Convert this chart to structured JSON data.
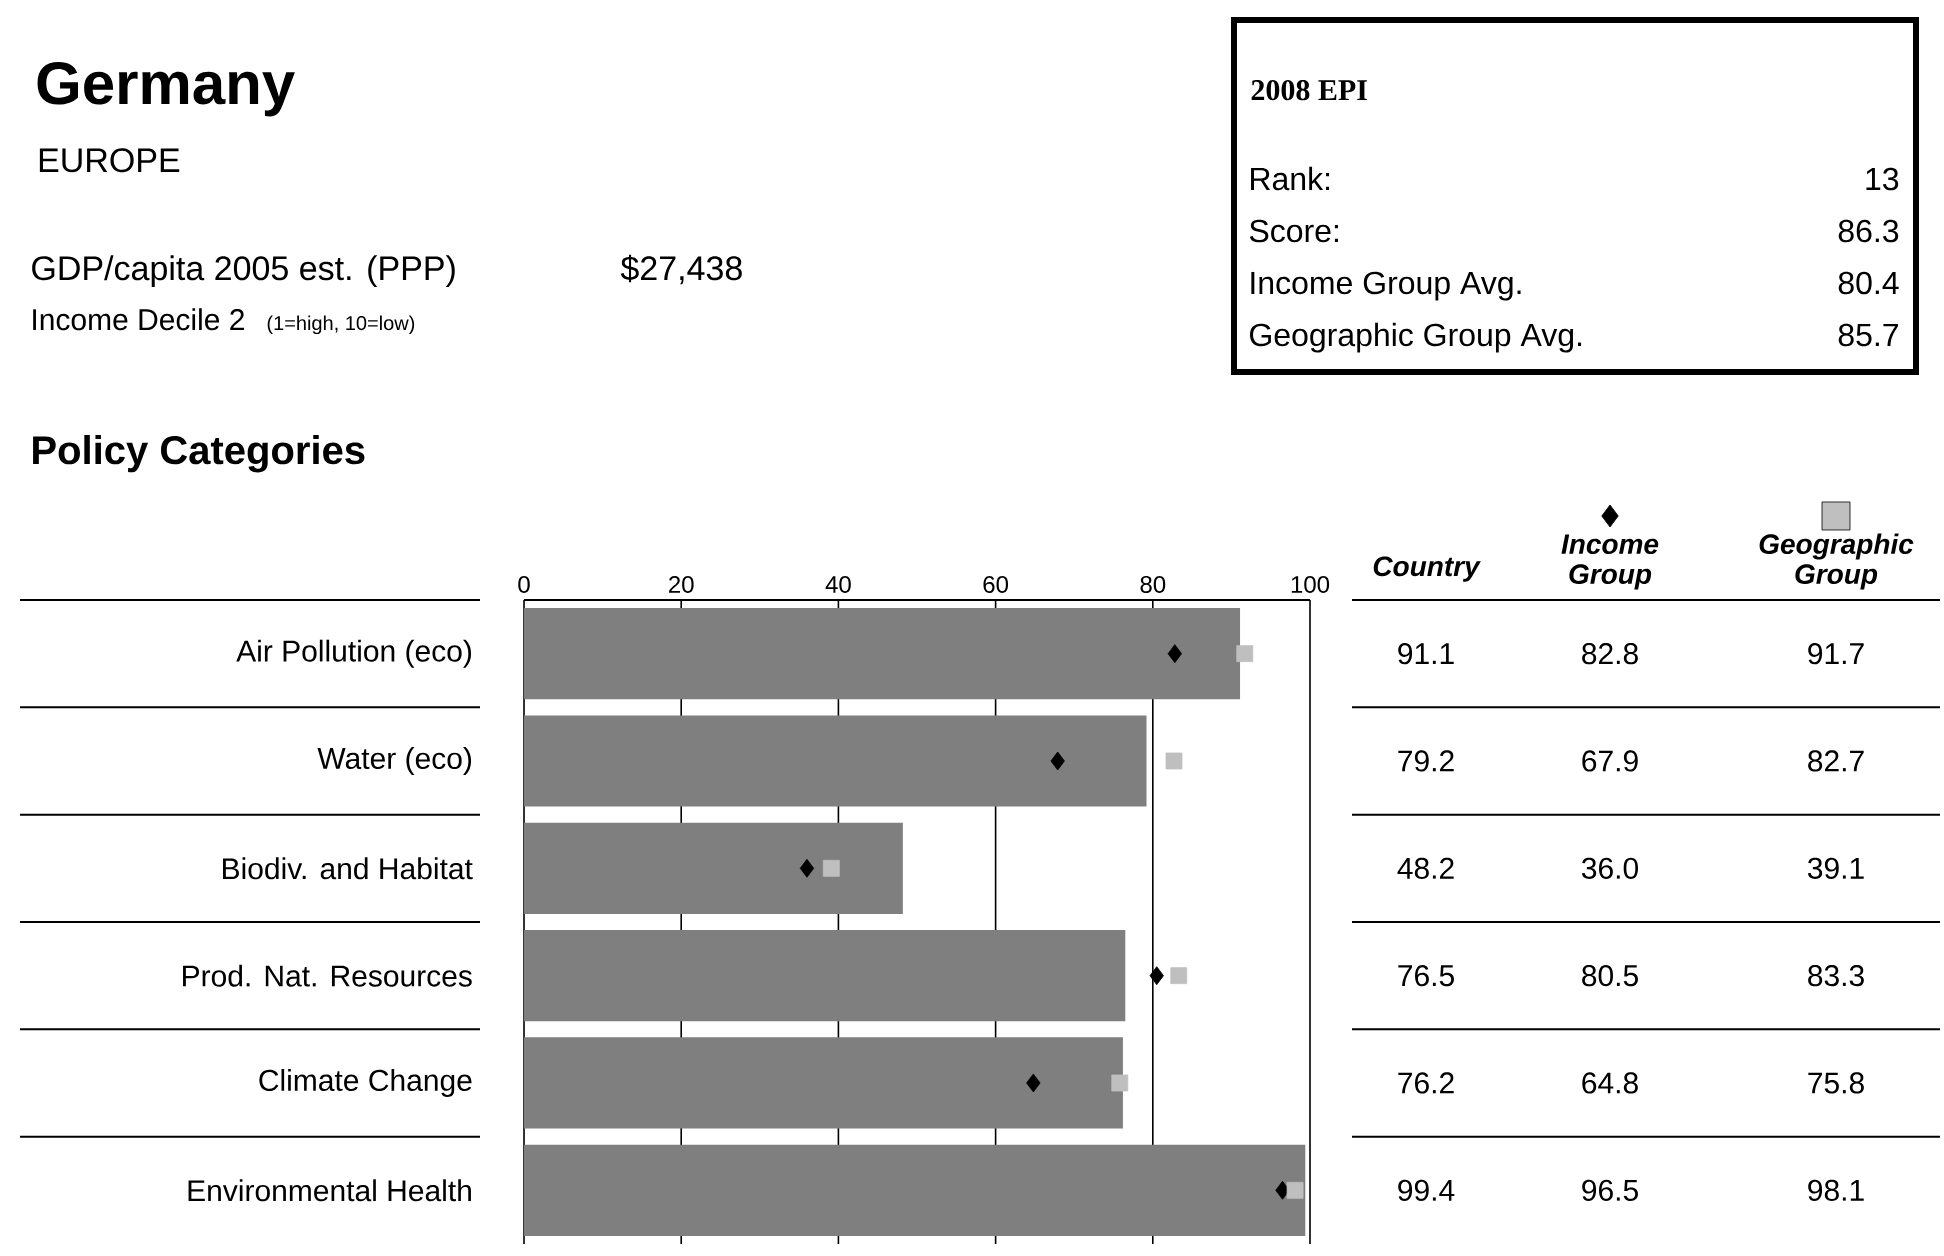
{
  "chart_data": {
    "type": "bar",
    "orientation": "horizontal",
    "title": "Germany",
    "subtitle": "EUROPE",
    "annotations": [
      "GDP/capita 2005 est. (PPP)",
      "$27,438",
      "Income Decile 2",
      "(1=high, 10=low)",
      "Policy Categories",
      "2008 EPI",
      "Rank:",
      "13",
      "Score:",
      "86.3",
      "Income Group Avg.",
      "80.4",
      "Geographic Group Avg.",
      "85.7",
      "Country"
    ],
    "categories": [
      "Air Pollution (eco)",
      "Water (eco)",
      "Biodiv. and Habitat",
      "Prod. Nat. Resources",
      "Climate Change",
      "Environmental Health"
    ],
    "series": [
      {
        "color": "#7f7f7f",
        "values": [
          91.1,
          79.2,
          48.2,
          76.5,
          76.2,
          99.4
        ]
      },
      {
        "name": "Income Group",
        "type": "scatter",
        "marker": "diamond",
        "color": "#000000",
        "values": [
          82.8,
          67.9,
          36.0,
          80.5,
          64.8,
          96.5
        ],
        "value_labels": [
          "82.8",
          "67.9",
          "36.0",
          "80.5",
          "64.8",
          "96.5"
        ]
      },
      {
        "name": "Geographic Group",
        "type": "scatter",
        "marker": "square",
        "color": "#bfbfbf",
        "values": [
          91.7,
          82.7,
          39.1,
          83.3,
          75.8,
          98.1
        ],
        "value_labels": [
          "91.7",
          "82.7",
          "39.1",
          "83.3",
          "75.8",
          "98.1"
        ]
      }
    ],
    "xlim": [
      0,
      100
    ],
    "xticks": [
      0,
      20,
      40,
      60,
      80,
      100
    ],
    "grid": "x",
    "data_labels": true,
    "legend": "top right"
  }
}
